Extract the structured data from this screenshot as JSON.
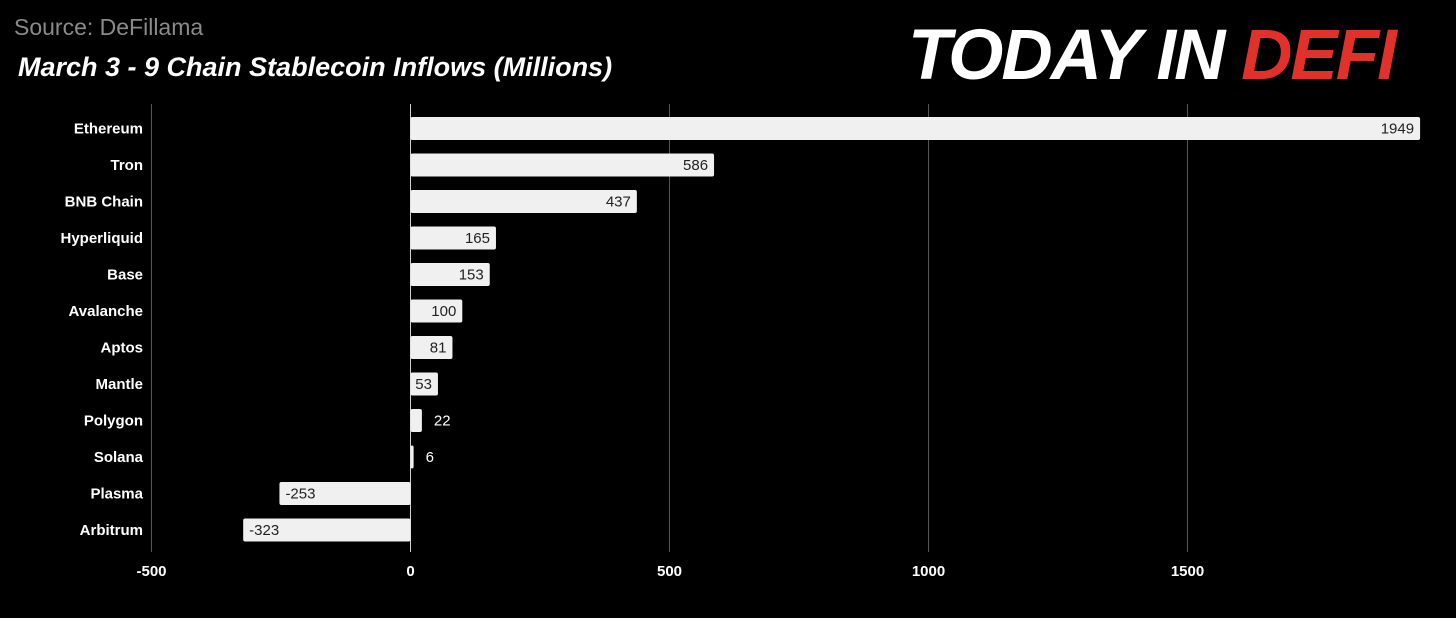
{
  "source": "Source: DeFillama",
  "logo": {
    "part1": "TODAY IN ",
    "part2": "DEFI"
  },
  "colors": {
    "background": "#000000",
    "bar": "#f0f0f0",
    "grid": "#555555",
    "logo_accent": "#e0322b"
  },
  "chart_data": {
    "type": "bar",
    "orientation": "horizontal",
    "title": "March 3 - 9 Chain Stablecoin Inflows (Millions)",
    "categories": [
      "Ethereum",
      "Tron",
      "BNB Chain",
      "Hyperliquid",
      "Base",
      "Avalanche",
      "Aptos",
      "Mantle",
      "Polygon",
      "Solana",
      "Plasma",
      "Arbitrum"
    ],
    "values": [
      1949,
      586,
      437,
      165,
      153,
      100,
      81,
      53,
      22,
      6,
      -253,
      -323
    ],
    "value_labels": [
      "1949",
      "586",
      "437",
      "165",
      "153",
      "100",
      "81",
      "53",
      "22",
      "6",
      "-253",
      "-323"
    ],
    "xlim": [
      -500,
      1950
    ],
    "xticks": [
      -500,
      0,
      500,
      1000,
      1500
    ],
    "xtick_labels": [
      "-500",
      "0",
      "500",
      "1000",
      "1500"
    ],
    "grid": true,
    "legend": false
  }
}
